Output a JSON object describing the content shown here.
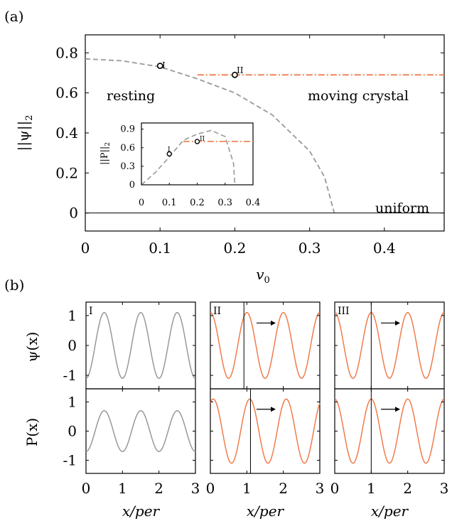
{
  "colors": {
    "gray": "#999999",
    "orange": "#f07c4c",
    "axis": "#000000"
  },
  "panel_a": {
    "label": "(a)",
    "ylabel": "||ψ||",
    "ylabel_sub": "2",
    "xlabel": "v",
    "xlabel_sub": "0",
    "annotations": {
      "resting": "resting",
      "moving": "moving crystal",
      "uniform": "uniform"
    },
    "markers": {
      "m1": "I",
      "m2": "II"
    },
    "inset": {
      "ylabel": "||P||",
      "ylabel_sub": "2",
      "markers": {
        "m1": "I",
        "m2": "II"
      }
    }
  },
  "panel_b": {
    "label": "(b)",
    "row_labels": {
      "psi": "ψ(x)",
      "P": "P(x)"
    },
    "xlabel": "x/per",
    "panel_tags": [
      "I",
      "II",
      "III"
    ]
  },
  "chart_data": [
    {
      "id": "a-main",
      "type": "line",
      "xlim": [
        0,
        0.48
      ],
      "ylim": [
        -0.09,
        0.89
      ],
      "xticks": [
        "0",
        "0.1",
        "0.2",
        "0.3",
        "0.4"
      ],
      "xtick_values": [
        0,
        0.1,
        0.2,
        0.3,
        0.4
      ],
      "yticks": [
        "0",
        "0.2",
        "0.4",
        "0.6",
        "0.8"
      ],
      "ytick_values": [
        0,
        0.2,
        0.4,
        0.6,
        0.8
      ],
      "series": [
        {
          "style": "dashed",
          "color": "gray",
          "x": [
            0,
            0.05,
            0.1,
            0.15,
            0.2,
            0.25,
            0.3,
            0.32,
            0.333
          ],
          "y": [
            0.77,
            0.76,
            0.73,
            0.67,
            0.6,
            0.49,
            0.31,
            0.18,
            0.0
          ]
        },
        {
          "style": "dash-dot",
          "color": "orange",
          "x": [
            0.15,
            0.48
          ],
          "y": [
            0.69,
            0.69
          ]
        },
        {
          "style": "solid",
          "color": "black",
          "x": [
            0,
            0.48
          ],
          "y": [
            0,
            0
          ]
        }
      ],
      "points": [
        {
          "label": "I",
          "x": 0.1,
          "y": 0.735
        },
        {
          "label": "II",
          "x": 0.2,
          "y": 0.69
        }
      ]
    },
    {
      "id": "a-inset",
      "type": "line",
      "xlim": [
        0,
        0.4
      ],
      "ylim": [
        0,
        1.0
      ],
      "xticks": [
        "0",
        "0.1",
        "0.2",
        "0.3",
        "0.4"
      ],
      "xtick_values": [
        0,
        0.1,
        0.2,
        0.3,
        0.4
      ],
      "yticks": [
        "0",
        "0.3",
        "0.6",
        "0.9"
      ],
      "ytick_values": [
        0,
        0.3,
        0.6,
        0.9
      ],
      "series": [
        {
          "style": "dashed",
          "color": "gray",
          "x": [
            0,
            0.05,
            0.1,
            0.15,
            0.2,
            0.25,
            0.3,
            0.33,
            0.335
          ],
          "y": [
            0.0,
            0.2,
            0.45,
            0.72,
            0.82,
            0.88,
            0.78,
            0.35,
            0.0
          ]
        },
        {
          "style": "dash-dot",
          "color": "orange",
          "x": [
            0.15,
            0.4
          ],
          "y": [
            0.7,
            0.7
          ]
        }
      ],
      "points": [
        {
          "label": "I",
          "x": 0.1,
          "y": 0.5
        },
        {
          "label": "II",
          "x": 0.2,
          "y": 0.7
        }
      ]
    },
    {
      "id": "b-grid",
      "type": "line",
      "xlim": [
        0,
        3
      ],
      "ylim": [
        -1.45,
        1.45
      ],
      "xticks": [
        "0",
        "1",
        "2",
        "3"
      ],
      "xtick_values": [
        0,
        1,
        2,
        3
      ],
      "yticks": [
        "-1",
        "0",
        "1"
      ],
      "ytick_values": [
        -1,
        0,
        1
      ],
      "panels": [
        {
          "tag": "I",
          "color": "gray",
          "psi": {
            "amp": 1.1,
            "phase": 0.5
          },
          "P": {
            "amp": 0.7,
            "phase": 0.5
          },
          "vline_psi": null,
          "vline_P": null,
          "arrow": false
        },
        {
          "tag": "II",
          "color": "orange",
          "psi": {
            "amp": 1.1,
            "phase": 1.0
          },
          "P": {
            "amp": 1.1,
            "phase": 1.08
          },
          "vline_psi": 0.92,
          "vline_P": 1.1,
          "arrow": true
        },
        {
          "tag": "III",
          "color": "orange",
          "psi": {
            "amp": 1.1,
            "phase": 1.0
          },
          "P": {
            "amp": 1.1,
            "phase": 1.0
          },
          "vline_psi": 1.0,
          "vline_P": 1.0,
          "arrow": true
        }
      ]
    }
  ]
}
